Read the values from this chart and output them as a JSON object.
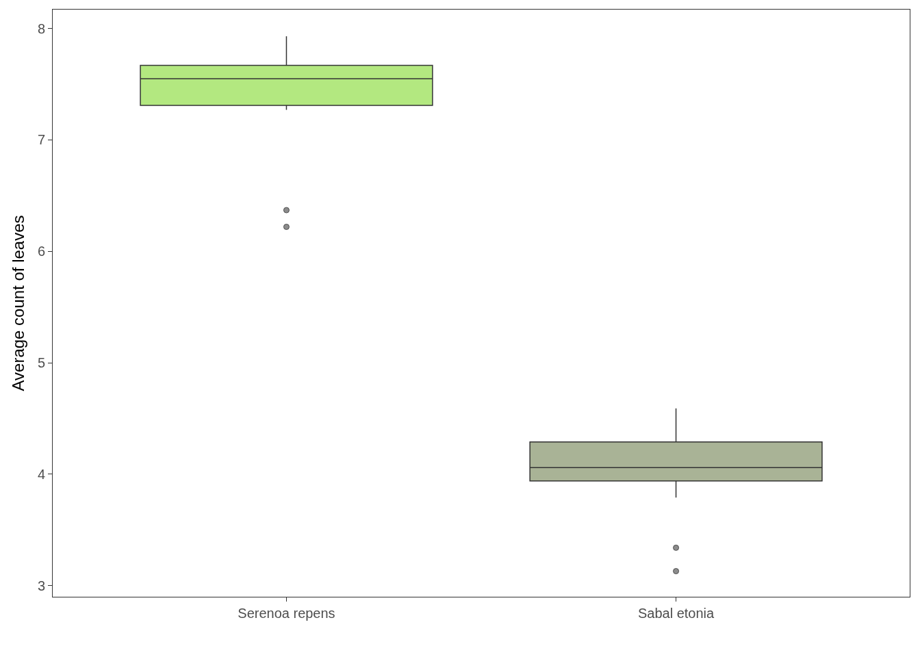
{
  "chart_data": {
    "type": "box",
    "ylabel": "Average count of leaves",
    "categories": [
      "Serenoa repens",
      "Sabal etonia"
    ],
    "boxes": [
      {
        "low": 7.27,
        "q1": 7.31,
        "median": 7.55,
        "q3": 7.67,
        "high": 7.93,
        "outliers": [
          6.37,
          6.22
        ]
      },
      {
        "low": 3.79,
        "q1": 3.94,
        "median": 4.06,
        "q3": 4.29,
        "high": 4.59,
        "outliers": [
          3.34,
          3.13
        ]
      }
    ],
    "colors": [
      "#b3e880",
      "#a9b396"
    ],
    "ylim": [
      2.9,
      8.17
    ],
    "yticks": [
      3,
      4,
      5,
      6,
      7,
      8
    ],
    "grid": false
  }
}
